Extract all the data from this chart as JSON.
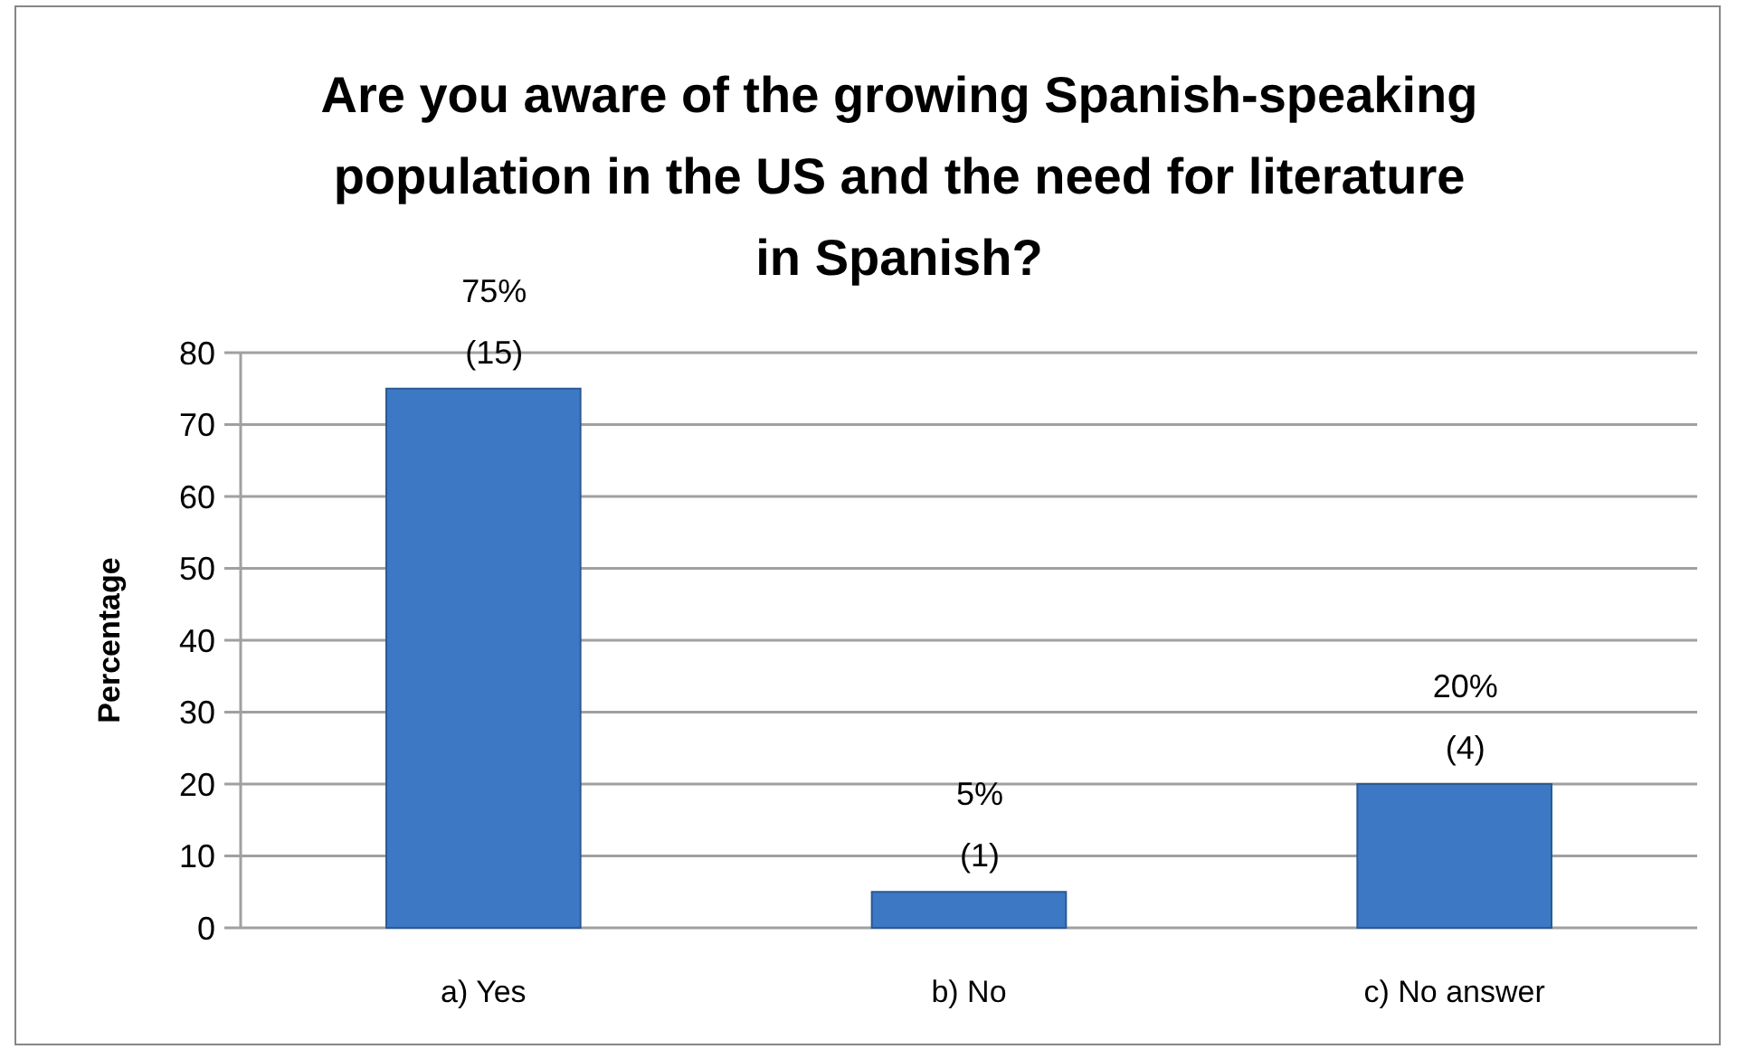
{
  "chart_data": {
    "type": "bar",
    "title": "Are you aware of the growing Spanish-speaking population in the US and the need for literature in Spanish?",
    "ylabel": "Percentage",
    "categories": [
      "a) Yes",
      "b) No",
      "c) No answer"
    ],
    "values": [
      75,
      5,
      20
    ],
    "color": "#3c78c3",
    "value_labels": [
      "75%\n(15)",
      "5%\n(1)",
      "20%\n(4)"
    ],
    "ylim": [
      0,
      80
    ],
    "yticks": [
      0,
      10,
      20,
      30,
      40,
      50,
      60,
      70,
      80
    ],
    "grid": "y"
  }
}
